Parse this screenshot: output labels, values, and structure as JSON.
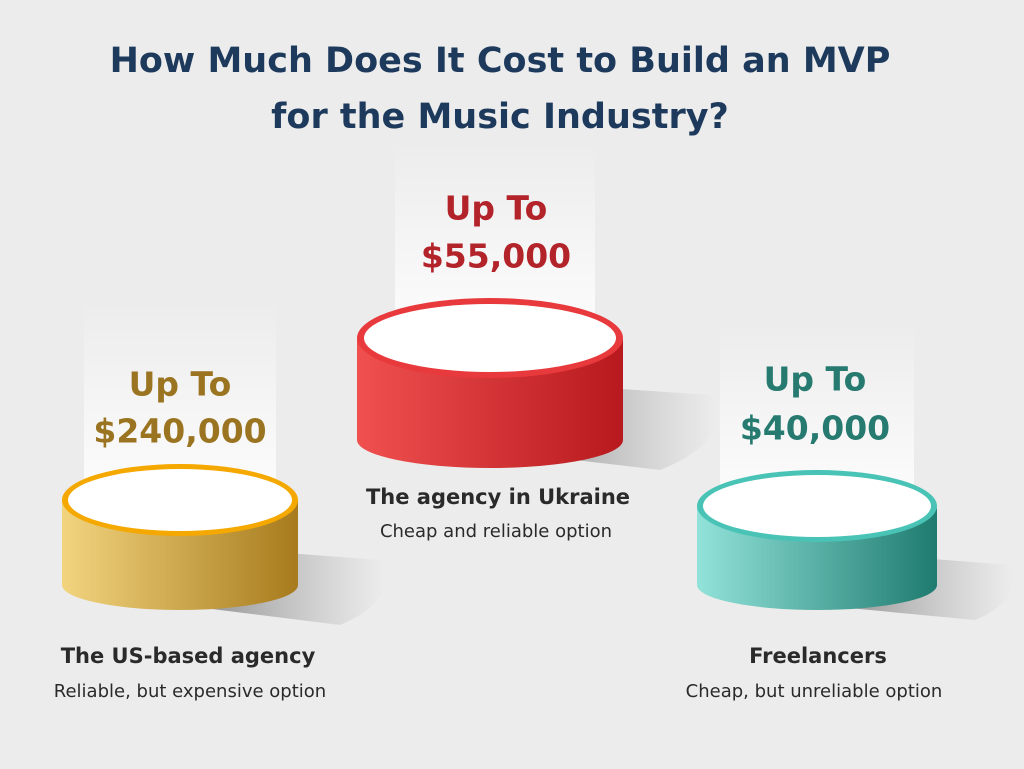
{
  "title": [
    "How Much Does It Cost to Build an MVP",
    "for the Music Industry?"
  ],
  "options": [
    {
      "prefix": "Up To",
      "price": "$240,000",
      "name": "The US-based agency",
      "description": "Reliable, but expensive option"
    },
    {
      "prefix": "Up To",
      "price": "$55,000",
      "name": "The agency in Ukraine",
      "description": "Cheap and reliable option"
    },
    {
      "prefix": "Up To",
      "price": "$40,000",
      "name": "Freelancers",
      "description": "Cheap, but unreliable option"
    }
  ]
}
